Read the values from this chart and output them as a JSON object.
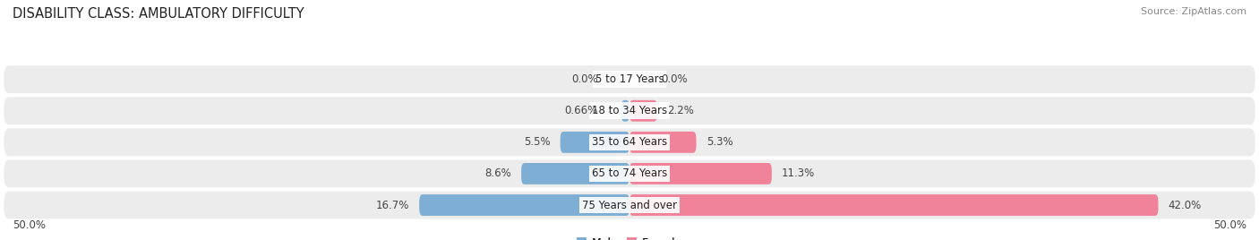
{
  "title": "DISABILITY CLASS: AMBULATORY DIFFICULTY",
  "source": "Source: ZipAtlas.com",
  "categories": [
    "5 to 17 Years",
    "18 to 34 Years",
    "35 to 64 Years",
    "65 to 74 Years",
    "75 Years and over"
  ],
  "male_values": [
    0.0,
    0.66,
    5.5,
    8.6,
    16.7
  ],
  "female_values": [
    0.0,
    2.2,
    5.3,
    11.3,
    42.0
  ],
  "male_labels": [
    "0.0%",
    "0.66%",
    "5.5%",
    "8.6%",
    "16.7%"
  ],
  "female_labels": [
    "0.0%",
    "2.2%",
    "5.3%",
    "11.3%",
    "42.0%"
  ],
  "male_color": "#7eaed3",
  "female_color": "#f0829a",
  "bar_row_bg": "#ececec",
  "max_val": 50.0,
  "x_left_label": "50.0%",
  "x_right_label": "50.0%",
  "title_fontsize": 10.5,
  "label_fontsize": 8.5,
  "cat_fontsize": 8.5,
  "legend_fontsize": 9,
  "source_fontsize": 8
}
